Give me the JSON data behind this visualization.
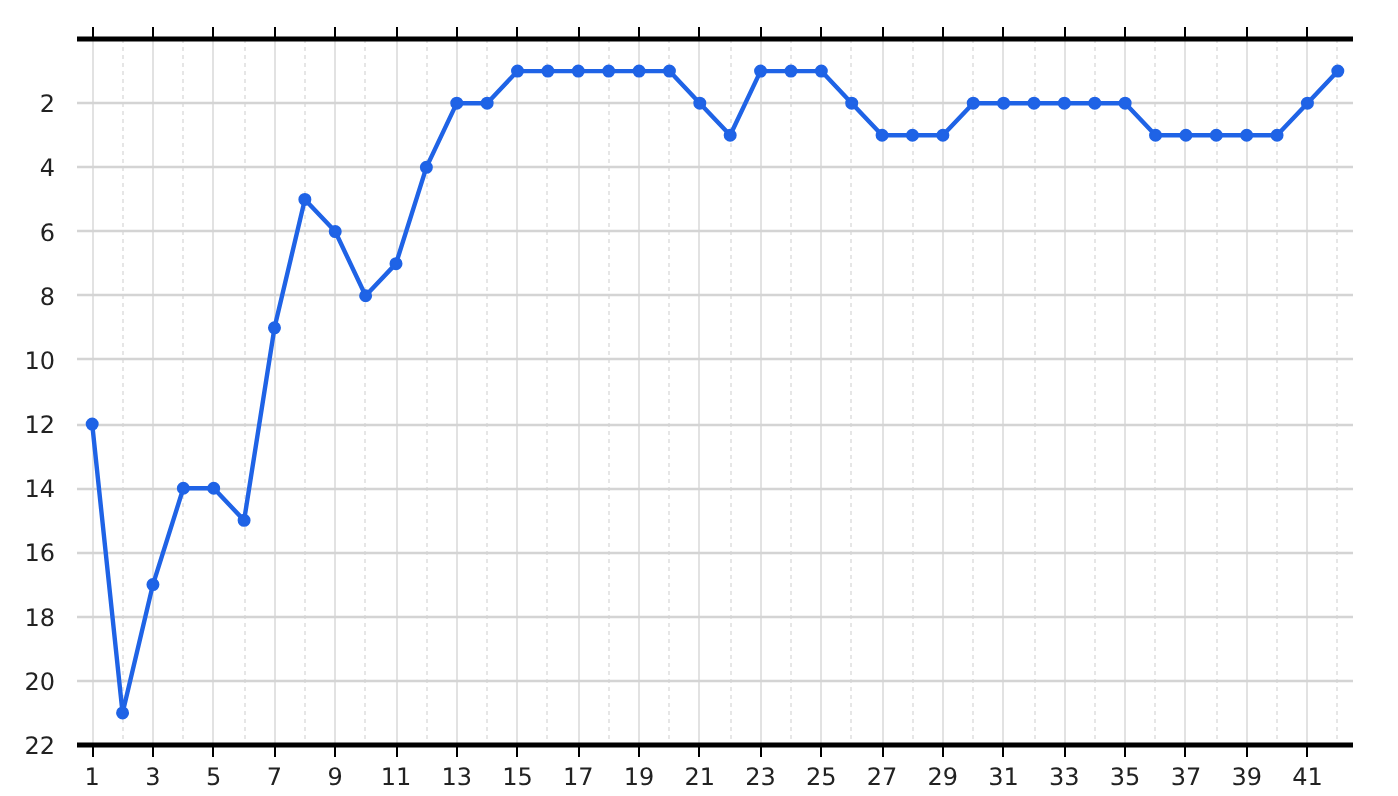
{
  "chart_data": {
    "type": "line",
    "marker": "circle",
    "grid": true,
    "x": [
      1,
      2,
      3,
      4,
      5,
      6,
      7,
      8,
      9,
      10,
      11,
      12,
      13,
      14,
      15,
      16,
      17,
      18,
      19,
      20,
      21,
      22,
      23,
      24,
      25,
      26,
      27,
      28,
      29,
      30,
      31,
      32,
      33,
      34,
      35,
      36,
      37,
      38,
      39,
      40,
      41,
      42
    ],
    "series": [
      {
        "color": "#1f63e6",
        "values": [
          12,
          21,
          17,
          14,
          14,
          15,
          9,
          5,
          6,
          8,
          7,
          4,
          2,
          2,
          1,
          1,
          1,
          1,
          1,
          1,
          2,
          3,
          1,
          1,
          1,
          2,
          3,
          3,
          3,
          2,
          2,
          2,
          2,
          2,
          2,
          3,
          3,
          3,
          3,
          3,
          2,
          1
        ]
      }
    ],
    "xlim": [
      0.5,
      42.5
    ],
    "xticks": [
      1,
      3,
      5,
      7,
      9,
      11,
      13,
      15,
      17,
      19,
      21,
      23,
      25,
      27,
      29,
      31,
      33,
      35,
      37,
      39,
      41
    ],
    "ylim": [
      22,
      0
    ],
    "yticks": [
      2,
      4,
      6,
      8,
      10,
      12,
      14,
      16,
      18,
      20,
      22
    ]
  }
}
